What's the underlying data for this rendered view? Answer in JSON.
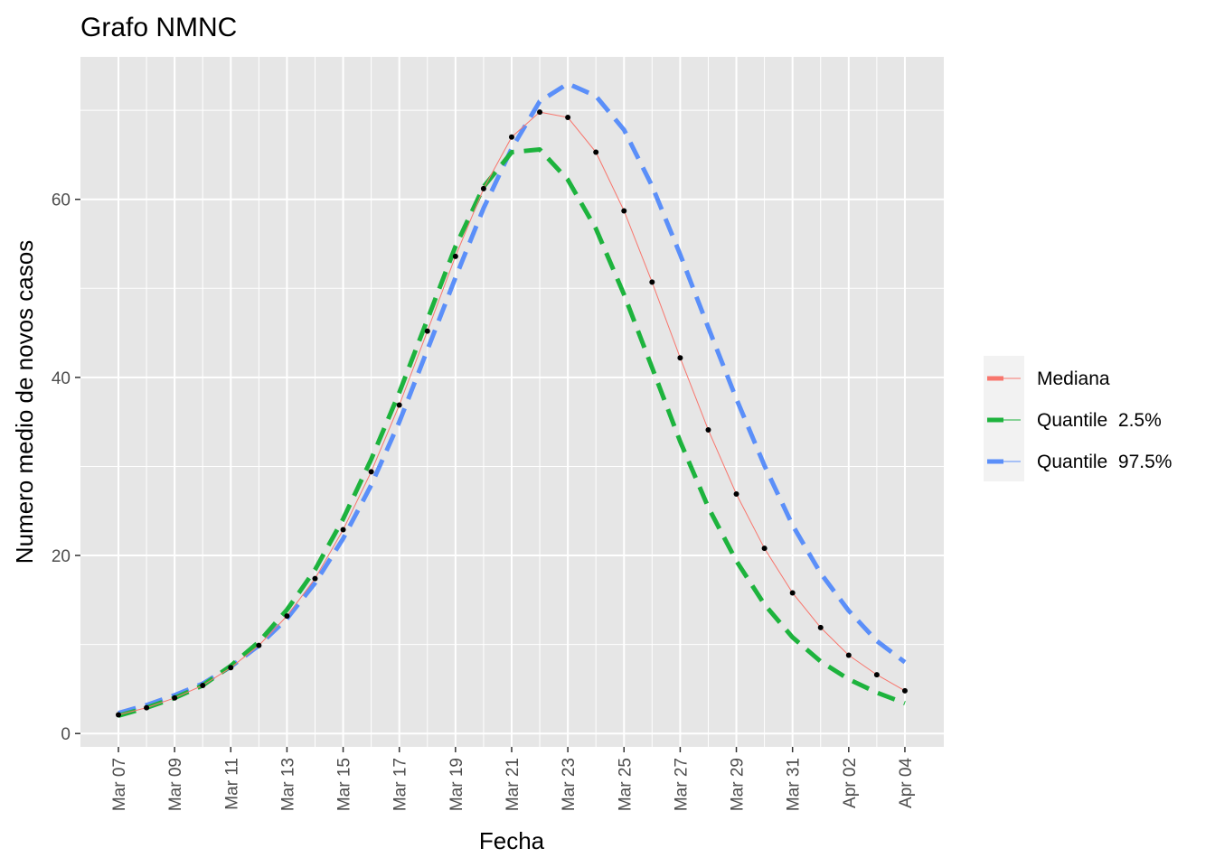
{
  "chart_data": {
    "type": "line",
    "title": "Grafo NMNC",
    "xlabel": "Fecha",
    "ylabel": "Numero medio de novos casos",
    "x_tick_labels": [
      "Mar 07",
      "Mar 09",
      "Mar 11",
      "Mar 13",
      "Mar 15",
      "Mar 17",
      "Mar 19",
      "Mar 21",
      "Mar 23",
      "Mar 25",
      "Mar 27",
      "Mar 29",
      "Mar 31",
      "Apr 02",
      "Apr 04"
    ],
    "y_tick_labels": [
      "0",
      "20",
      "40",
      "60"
    ],
    "y_ticks": [
      0,
      20,
      40,
      60
    ],
    "ylim": [
      -1.5,
      76
    ],
    "x": [
      "Mar 07",
      "Mar 08",
      "Mar 09",
      "Mar 10",
      "Mar 11",
      "Mar 12",
      "Mar 13",
      "Mar 14",
      "Mar 15",
      "Mar 16",
      "Mar 17",
      "Mar 18",
      "Mar 19",
      "Mar 20",
      "Mar 21",
      "Mar 22",
      "Mar 23",
      "Mar 24",
      "Mar 25",
      "Mar 26",
      "Mar 27",
      "Mar 28",
      "Mar 29",
      "Mar 30",
      "Mar 31",
      "Apr 01",
      "Apr 02",
      "Apr 03",
      "Apr 04"
    ],
    "grid": true,
    "legend_position": "right",
    "series": [
      {
        "name": "Mediana",
        "color": "#f8766d",
        "style": "solid",
        "values": [
          2.1,
          2.9,
          4.0,
          5.4,
          7.4,
          9.9,
          13.2,
          17.4,
          22.9,
          29.4,
          36.9,
          45.2,
          53.6,
          61.2,
          67.0,
          69.8,
          69.2,
          65.3,
          58.7,
          50.7,
          42.2,
          34.1,
          26.9,
          20.8,
          15.8,
          11.9,
          8.8,
          6.6,
          4.8
        ]
      },
      {
        "name": "Quantile  2.5%",
        "color": "#1db33d",
        "style": "dashed",
        "values": [
          2.0,
          2.9,
          4.0,
          5.4,
          7.6,
          10.3,
          13.9,
          18.4,
          24.1,
          30.8,
          38.3,
          46.5,
          54.7,
          61.4,
          65.3,
          65.6,
          62.2,
          56.7,
          49.3,
          41.1,
          32.8,
          25.4,
          19.4,
          14.5,
          10.8,
          8.1,
          6.1,
          4.6,
          3.4
        ]
      },
      {
        "name": "Quantile  97.5%",
        "color": "#5b8ff9",
        "style": "dashed",
        "values": [
          2.3,
          3.2,
          4.3,
          5.6,
          7.5,
          9.9,
          12.9,
          16.9,
          21.9,
          27.9,
          35.0,
          43.1,
          51.2,
          59.0,
          65.7,
          71.0,
          73.0,
          71.6,
          67.8,
          61.5,
          53.8,
          45.6,
          37.6,
          30.1,
          23.4,
          18.0,
          13.8,
          10.4,
          8.0
        ]
      }
    ],
    "median_points": true
  }
}
